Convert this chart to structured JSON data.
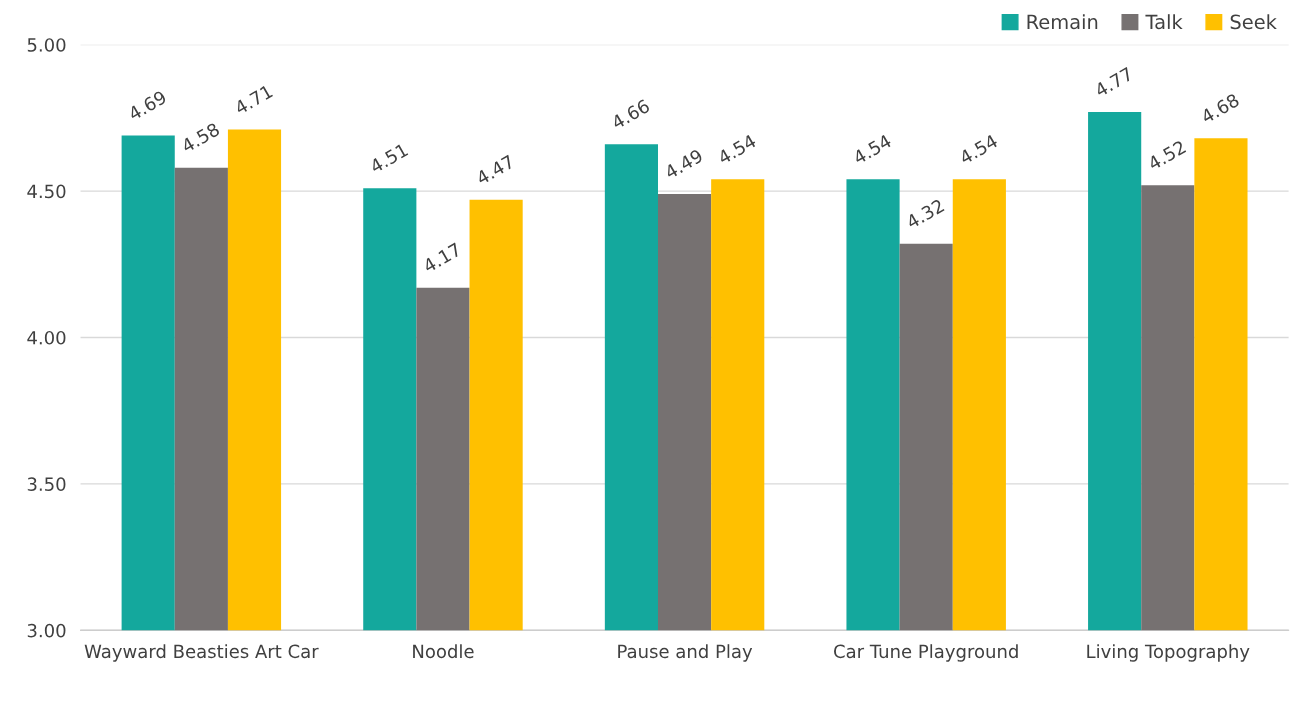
{
  "chart_data": {
    "type": "bar",
    "categories": [
      "Wayward Beasties Art Car",
      "Noodle",
      "Pause and Play",
      "Car Tune Playground",
      "Living Topography"
    ],
    "series": [
      {
        "name": "Remain",
        "color": "#14a89d",
        "values": [
          4.69,
          4.51,
          4.66,
          4.54,
          4.77
        ]
      },
      {
        "name": "Talk",
        "color": "#767171",
        "values": [
          4.58,
          4.17,
          4.49,
          4.32,
          4.52
        ]
      },
      {
        "name": "Seek",
        "color": "#ffc000",
        "values": [
          4.71,
          4.47,
          4.54,
          4.54,
          4.68
        ]
      }
    ],
    "ylim": [
      3,
      5
    ],
    "yticks": [
      {
        "value": 3,
        "label": "3.00"
      },
      {
        "value": 3.5,
        "label": "3.50"
      },
      {
        "value": 4,
        "label": "4.00"
      },
      {
        "value": 4.5,
        "label": "4.50"
      },
      {
        "value": 5,
        "label": "5.00"
      }
    ],
    "grid": "y",
    "legend": "top right",
    "data_labels": true
  }
}
